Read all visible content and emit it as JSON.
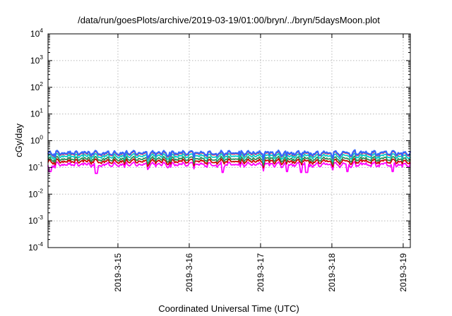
{
  "chart_data": {
    "type": "line",
    "title": "/data/run/goesPlots/archive/2019-03-19/01:00/bryn/../bryn/5daysMoon.plot",
    "xlabel": "Coordinated Universal Time (UTC)",
    "ylabel": "cGy/day",
    "y_scale": "log",
    "ylim": [
      0.0001,
      10000
    ],
    "y_ticks": [
      {
        "base": "10",
        "exp": "4"
      },
      {
        "base": "10",
        "exp": "3"
      },
      {
        "base": "10",
        "exp": "2"
      },
      {
        "base": "10",
        "exp": "1"
      },
      {
        "base": "10",
        "exp": "0"
      },
      {
        "base": "10",
        "exp": "-1"
      },
      {
        "base": "10",
        "exp": "-2"
      },
      {
        "base": "10",
        "exp": "-3"
      },
      {
        "base": "10",
        "exp": "-4"
      }
    ],
    "x_ticks": [
      "2019-3-15",
      "2019-3-16",
      "2019-3-17",
      "2019-3-18",
      "2019-3-19"
    ],
    "x_tick_days": [
      15,
      16,
      17,
      18,
      19
    ],
    "xlim_days": [
      14.02,
      19.1
    ],
    "grid": true,
    "series": [
      {
        "color": "#ff00ff",
        "base": 0.13,
        "dips": [
          [
            14.05,
            0.07
          ],
          [
            14.7,
            0.06
          ],
          [
            16.47,
            0.065
          ],
          [
            17.37,
            0.07
          ],
          [
            17.57,
            0.065
          ],
          [
            17.65,
            0.065
          ],
          [
            18.22,
            0.07
          ],
          [
            18.85,
            0.07
          ]
        ]
      },
      {
        "color": "#cc0000",
        "base": 0.17
      },
      {
        "color": "#2e8b57",
        "base": 0.21
      },
      {
        "color": "#00cccc",
        "base": 0.27
      },
      {
        "color": "#ff2222",
        "base": 0.33
      },
      {
        "color": "#3366ff",
        "base": 0.35
      }
    ]
  }
}
